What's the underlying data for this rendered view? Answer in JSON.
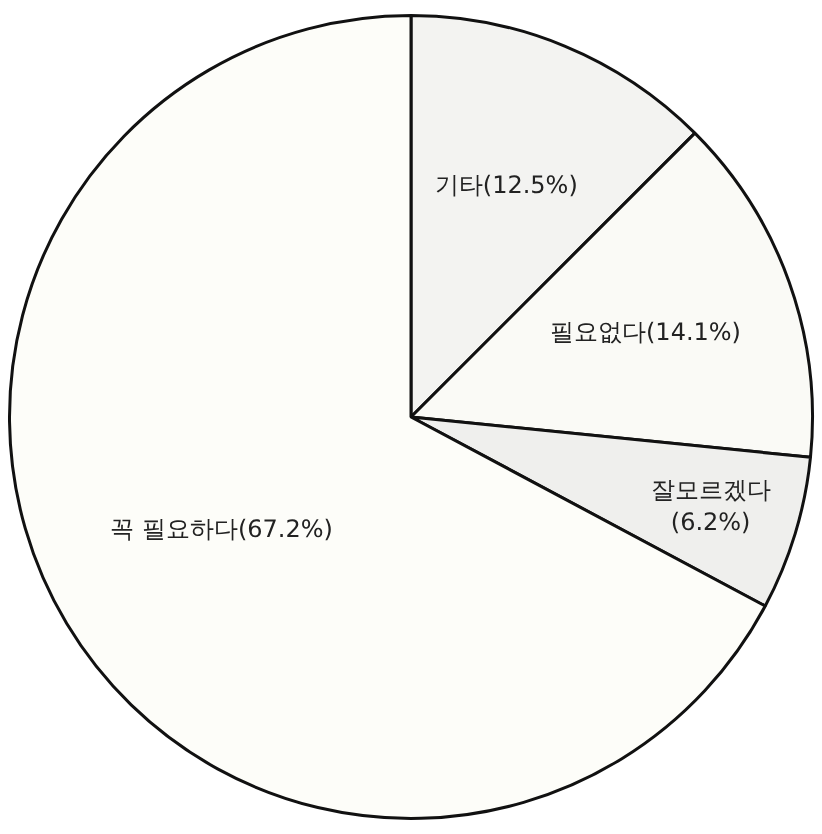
{
  "chart_data": {
    "type": "pie",
    "categories": [
      "기타",
      "필요없다",
      "잘모르겠다",
      "꼭 필요하다"
    ],
    "values": [
      12.5,
      14.1,
      6.2,
      67.2
    ],
    "colors": [
      "#f3f3f1",
      "#fafaf6",
      "#efefed",
      "#fdfdf9"
    ],
    "value_labels": [
      "(12.5%)",
      "(14.1%)",
      "(6.2%)",
      "(67.2%)"
    ],
    "legend": false
  }
}
